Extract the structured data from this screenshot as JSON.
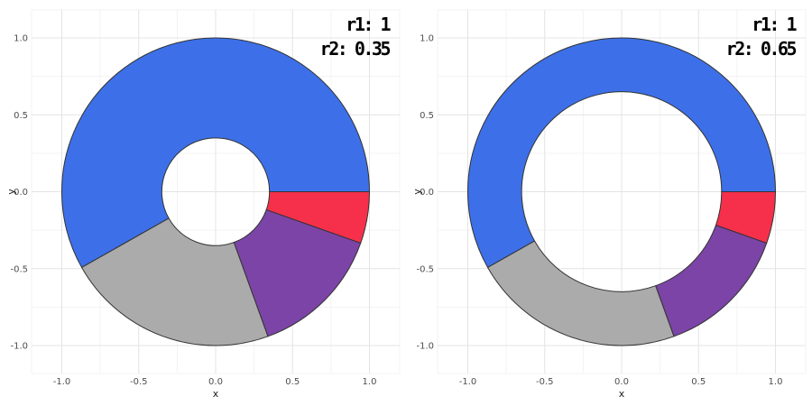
{
  "style": {
    "background": "#FFFFFF",
    "grid_major_color": "#E4E4E4",
    "grid_minor_color": "#F3F3F3",
    "segment_stroke": "#333333",
    "tick_label_color": "#4D4D4D",
    "axis_title_color": "#1A1A1A",
    "annotation_color": "#000000"
  },
  "chart_data": [
    {
      "type": "donut",
      "panel": "left",
      "annotation": {
        "r1_label": "r1: 1",
        "r2_label": "r2: 0.35"
      },
      "r1": 1,
      "r2": 0.35,
      "xlabel": "x",
      "ylabel": "y",
      "xlim": [
        -1.19,
        1.19
      ],
      "ylim": [
        -1.19,
        1.19
      ],
      "grid": true,
      "tick_values": [
        -1.0,
        -0.5,
        0.0,
        0.5,
        1.0
      ],
      "minor_tick_values": [
        -0.75,
        -0.25,
        0.25,
        0.75
      ],
      "xtick_labels": [
        "-1.0",
        "-0.5",
        "0.0",
        "0.5",
        "1.0"
      ],
      "ytick_labels": [
        "-1.0",
        "-0.5",
        "0.0",
        "0.5",
        "1.0"
      ],
      "segments": [
        {
          "name": "blue",
          "color": "#3D70E8",
          "start_deg": 0,
          "end_deg": 209.5,
          "fraction": 0.582
        },
        {
          "name": "gray",
          "color": "#ABABAB",
          "start_deg": 209.5,
          "end_deg": 289.9,
          "fraction": 0.223
        },
        {
          "name": "purple",
          "color": "#7B44A6",
          "start_deg": 289.9,
          "end_deg": 340.5,
          "fraction": 0.141
        },
        {
          "name": "red",
          "color": "#F6304B",
          "start_deg": 340.5,
          "end_deg": 360,
          "fraction": 0.054
        }
      ]
    },
    {
      "type": "donut",
      "panel": "right",
      "annotation": {
        "r1_label": "r1: 1",
        "r2_label": "r2: 0.65"
      },
      "r1": 1,
      "r2": 0.65,
      "xlabel": "x",
      "ylabel": "y",
      "xlim": [
        -1.19,
        1.19
      ],
      "ylim": [
        -1.19,
        1.19
      ],
      "grid": true,
      "tick_values": [
        -1.0,
        -0.5,
        0.0,
        0.5,
        1.0
      ],
      "minor_tick_values": [
        -0.75,
        -0.25,
        0.25,
        0.75
      ],
      "xtick_labels": [
        "-1.0",
        "-0.5",
        "0.0",
        "0.5",
        "1.0"
      ],
      "ytick_labels": [
        "-1.0",
        "-0.5",
        "0.0",
        "0.5",
        "1.0"
      ],
      "segments": [
        {
          "name": "blue",
          "color": "#3D70E8",
          "start_deg": 0,
          "end_deg": 209.5,
          "fraction": 0.582
        },
        {
          "name": "gray",
          "color": "#ABABAB",
          "start_deg": 209.5,
          "end_deg": 289.9,
          "fraction": 0.223
        },
        {
          "name": "purple",
          "color": "#7B44A6",
          "start_deg": 289.9,
          "end_deg": 340.5,
          "fraction": 0.141
        },
        {
          "name": "red",
          "color": "#F6304B",
          "start_deg": 340.5,
          "end_deg": 360,
          "fraction": 0.054
        }
      ]
    }
  ]
}
